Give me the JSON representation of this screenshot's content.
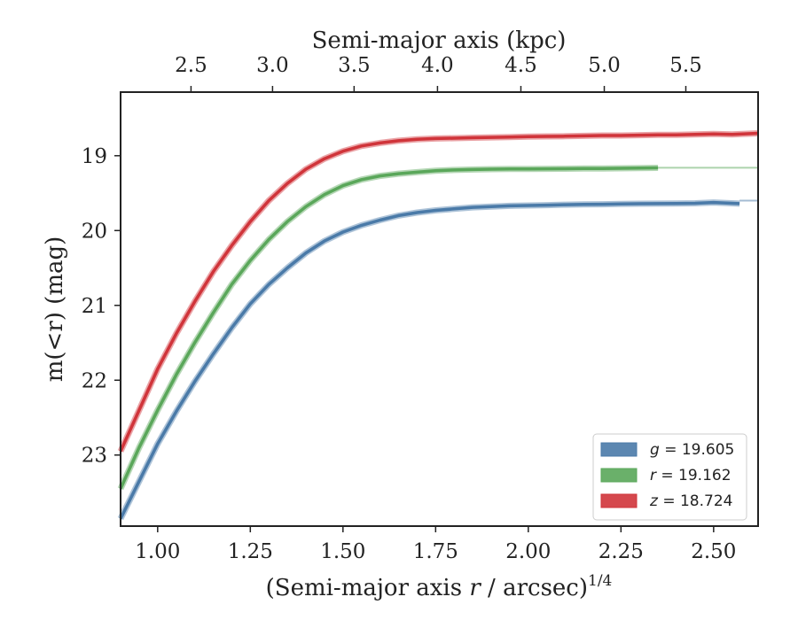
{
  "chart_data": {
    "type": "line",
    "xlabel": "(Semi-major axis r / arcsec)",
    "xlabel_var": "r",
    "xlabel_exp": "1/4",
    "ylabel": "m(<r) (mag)",
    "top_xlabel": "Semi-major axis (kpc)",
    "xlim": [
      0.9,
      2.62
    ],
    "ylim": [
      23.95,
      18.15
    ],
    "y_inverted": true,
    "xticks": [
      1.0,
      1.25,
      1.5,
      1.75,
      2.0,
      2.25,
      2.5
    ],
    "xtick_labels": [
      "1.00",
      "1.25",
      "1.50",
      "1.75",
      "2.00",
      "2.25",
      "2.50"
    ],
    "yticks": [
      19,
      20,
      21,
      22,
      23
    ],
    "ytick_labels": [
      "19",
      "20",
      "21",
      "22",
      "23"
    ],
    "top_xticks": [
      2.5,
      3.0,
      3.5,
      4.0,
      4.5,
      5.0,
      5.5
    ],
    "top_xtick_labels": [
      "2.5",
      "3.0",
      "3.5",
      "4.0",
      "4.5",
      "5.0",
      "5.5"
    ],
    "top_xtick_positions": [
      1.09,
      1.31,
      1.53,
      1.755,
      1.98,
      2.205,
      2.425
    ],
    "legend_placement": "lower-right",
    "grid": false,
    "series": [
      {
        "name": "g = 19.605",
        "band": "g",
        "value": "19.605",
        "color": "#4a7aa8",
        "x": [
          0.9,
          0.95,
          1.0,
          1.05,
          1.1,
          1.15,
          1.2,
          1.25,
          1.3,
          1.35,
          1.4,
          1.45,
          1.5,
          1.55,
          1.6,
          1.65,
          1.7,
          1.75,
          1.8,
          1.85,
          1.9,
          1.95,
          2.0,
          2.05,
          2.1,
          2.15,
          2.2,
          2.25,
          2.3,
          2.35,
          2.4,
          2.45,
          2.5,
          2.57
        ],
        "y": [
          23.85,
          23.35,
          22.85,
          22.42,
          22.02,
          21.65,
          21.3,
          20.98,
          20.72,
          20.5,
          20.3,
          20.14,
          20.02,
          19.93,
          19.86,
          19.8,
          19.76,
          19.73,
          19.71,
          19.69,
          19.68,
          19.67,
          19.665,
          19.66,
          19.655,
          19.65,
          19.648,
          19.645,
          19.642,
          19.64,
          19.638,
          19.635,
          19.625,
          19.64
        ],
        "extend_to": 2.62,
        "extend_value": 19.6
      },
      {
        "name": "r = 19.162",
        "band": "r",
        "value": "19.162",
        "color": "#5aa75a",
        "x": [
          0.9,
          0.95,
          1.0,
          1.05,
          1.1,
          1.15,
          1.2,
          1.25,
          1.3,
          1.35,
          1.4,
          1.45,
          1.5,
          1.55,
          1.6,
          1.65,
          1.7,
          1.75,
          1.8,
          1.85,
          1.9,
          1.95,
          2.0,
          2.05,
          2.1,
          2.15,
          2.2,
          2.25,
          2.3,
          2.35
        ],
        "y": [
          23.45,
          22.9,
          22.4,
          21.93,
          21.5,
          21.1,
          20.72,
          20.4,
          20.12,
          19.88,
          19.68,
          19.52,
          19.4,
          19.32,
          19.27,
          19.24,
          19.22,
          19.2,
          19.19,
          19.185,
          19.18,
          19.178,
          19.176,
          19.175,
          19.174,
          19.172,
          19.17,
          19.168,
          19.165,
          19.162
        ],
        "extend_to": 2.62,
        "extend_value": 19.16
      },
      {
        "name": "z = 18.724",
        "band": "z",
        "value": "18.724",
        "color": "#d0343a",
        "x": [
          0.9,
          0.95,
          1.0,
          1.05,
          1.1,
          1.15,
          1.2,
          1.25,
          1.3,
          1.35,
          1.4,
          1.45,
          1.5,
          1.55,
          1.6,
          1.65,
          1.7,
          1.75,
          1.8,
          1.85,
          1.9,
          1.95,
          2.0,
          2.05,
          2.1,
          2.15,
          2.2,
          2.25,
          2.3,
          2.35,
          2.4,
          2.45,
          2.5,
          2.55,
          2.62
        ],
        "y": [
          22.95,
          22.4,
          21.85,
          21.38,
          20.95,
          20.55,
          20.2,
          19.88,
          19.6,
          19.37,
          19.18,
          19.04,
          18.94,
          18.87,
          18.83,
          18.8,
          18.78,
          18.77,
          18.765,
          18.76,
          18.755,
          18.75,
          18.745,
          18.742,
          18.74,
          18.735,
          18.73,
          18.73,
          18.725,
          18.72,
          18.72,
          18.715,
          18.71,
          18.715,
          18.7
        ]
      }
    ]
  }
}
